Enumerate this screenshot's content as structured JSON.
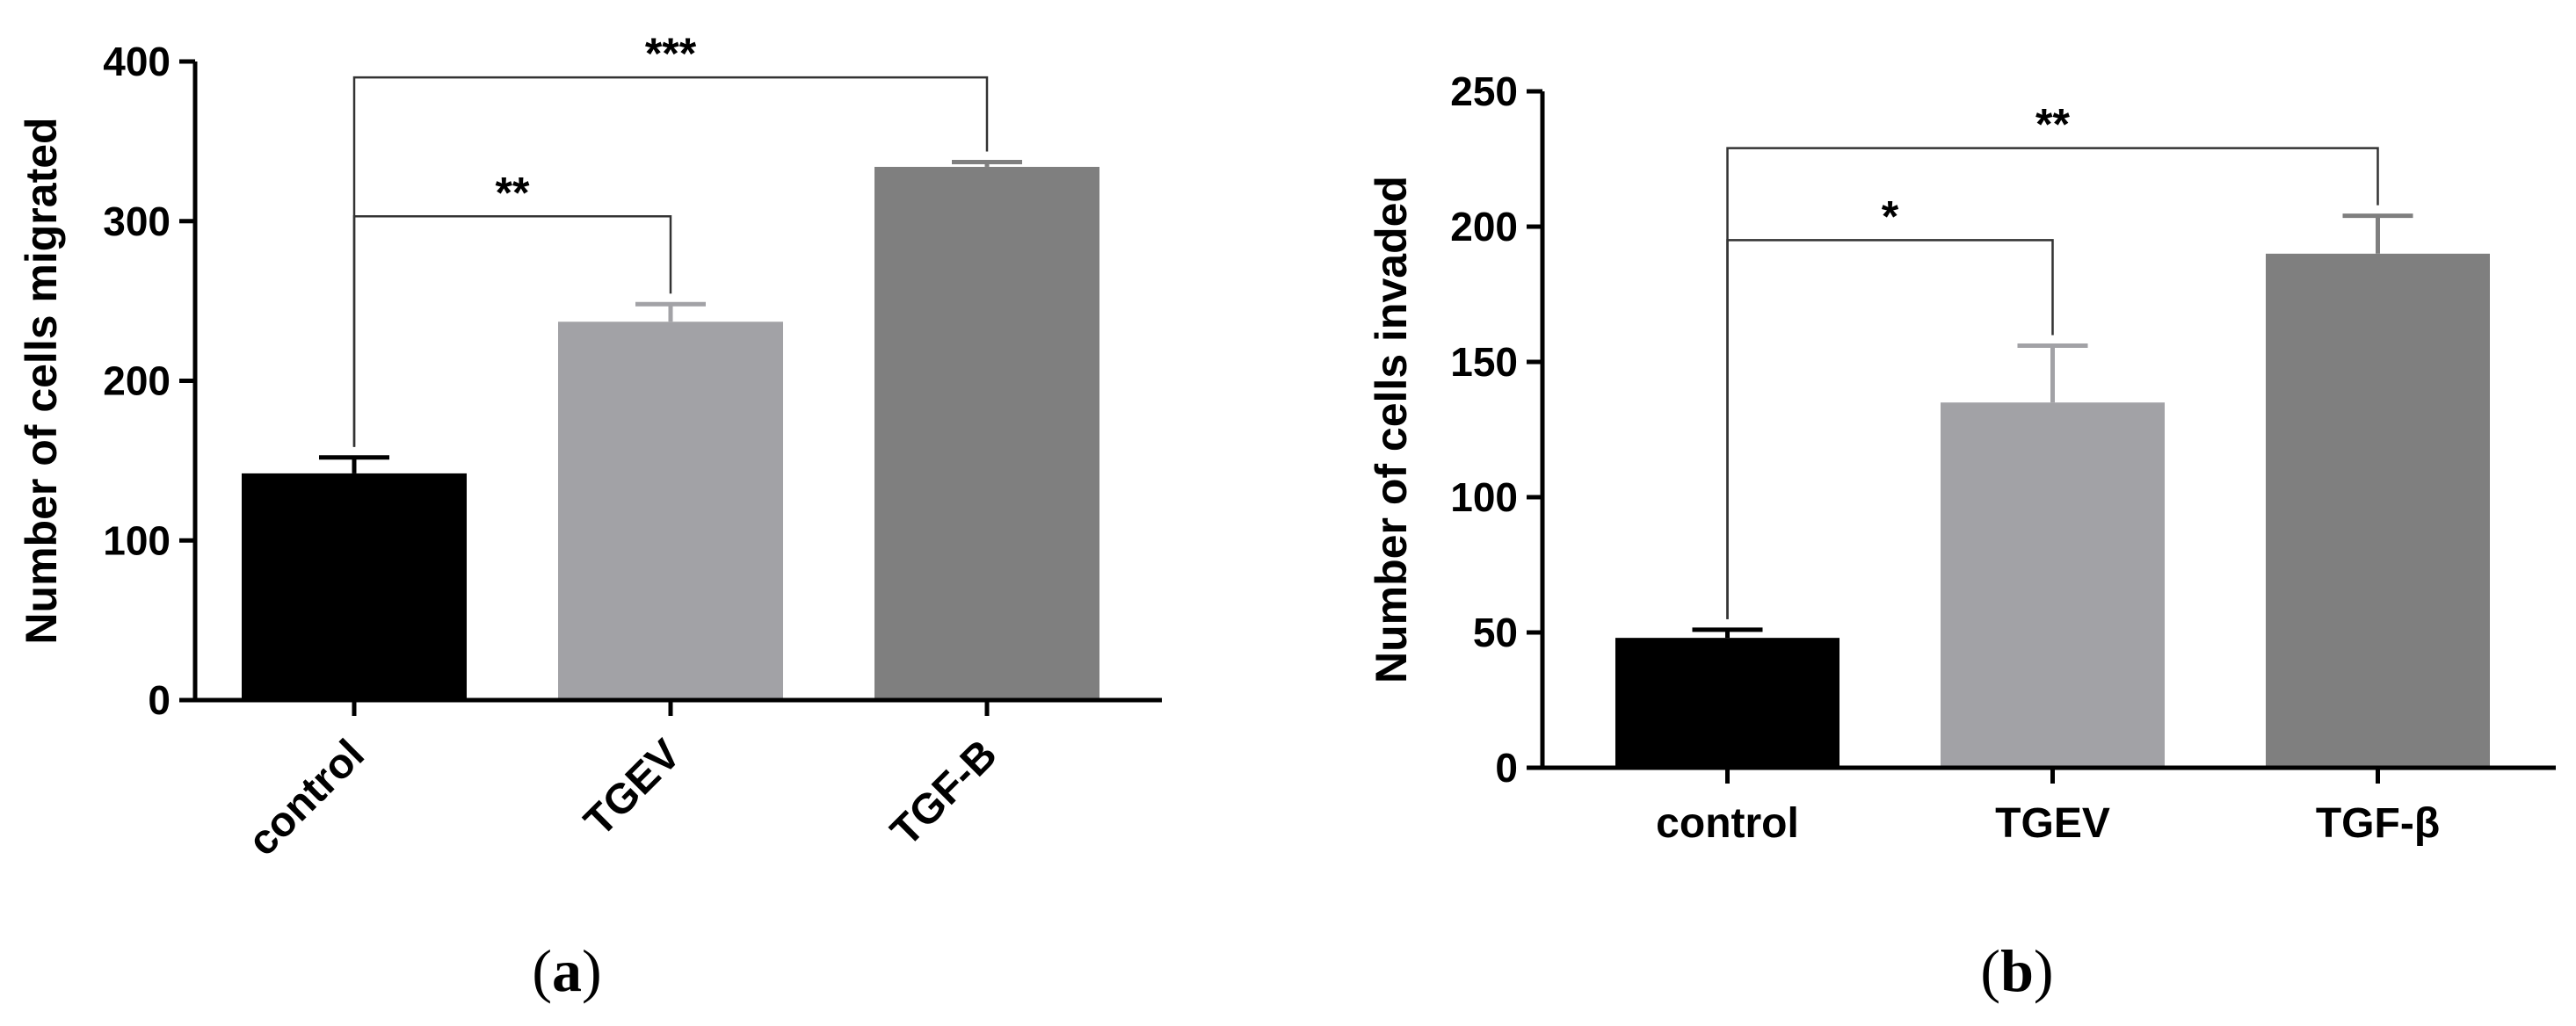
{
  "chart_data": [
    {
      "type": "bar",
      "panel_label": "a",
      "ylabel": "Number of cells migrated",
      "xlabel": "",
      "categories": [
        "control",
        "TGEV",
        "TGF-B"
      ],
      "values": [
        142,
        237,
        334
      ],
      "errors": [
        10,
        11,
        3
      ],
      "colors": [
        "#000000",
        "#a2a2a6",
        "#7f7f7f"
      ],
      "ylim": [
        0,
        400
      ],
      "yticks": [
        0,
        100,
        200,
        300,
        400
      ],
      "x_tick_rotation": -45,
      "significance": [
        {
          "from": 0,
          "to": 1,
          "label": "**",
          "y": 303
        },
        {
          "from": 0,
          "to": 2,
          "label": "***",
          "y": 390
        }
      ]
    },
    {
      "type": "bar",
      "panel_label": "b",
      "ylabel": "Number of cells invaded",
      "xlabel": "",
      "categories": [
        "control",
        "TGEV",
        "TGF-β"
      ],
      "values": [
        48,
        135,
        190
      ],
      "errors": [
        3,
        21,
        14
      ],
      "colors": [
        "#000000",
        "#a2a2a6",
        "#7f7f7f"
      ],
      "ylim": [
        0,
        250
      ],
      "yticks": [
        0,
        50,
        100,
        150,
        200,
        250
      ],
      "x_tick_rotation": 0,
      "significance": [
        {
          "from": 0,
          "to": 1,
          "label": "*",
          "y": 195
        },
        {
          "from": 0,
          "to": 2,
          "label": "**",
          "y": 229
        }
      ]
    }
  ]
}
